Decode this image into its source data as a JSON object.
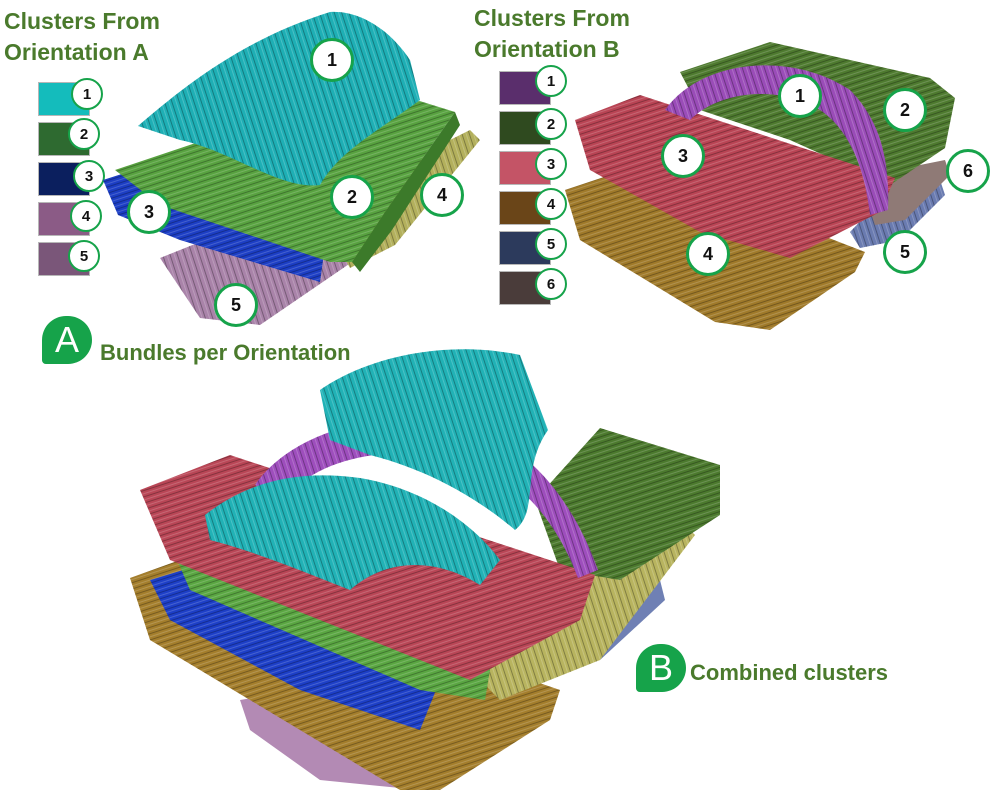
{
  "orientation_a": {
    "title_line1": "Clusters From",
    "title_line2": "Orientation A",
    "swatches": [
      {
        "label": "1",
        "color": "#14bcbc"
      },
      {
        "label": "2",
        "color": "#2e6a30"
      },
      {
        "label": "3",
        "color": "#0b1f5e"
      },
      {
        "label": "4",
        "color": "#8b5b86"
      },
      {
        "label": "5",
        "color": "#7a5679"
      }
    ],
    "callouts": [
      "1",
      "2",
      "3",
      "4",
      "5"
    ]
  },
  "orientation_b": {
    "title_line1": "Clusters From",
    "title_line2": "Orientation B",
    "swatches": [
      {
        "label": "1",
        "color": "#5a2e6c"
      },
      {
        "label": "2",
        "color": "#2f4a1f"
      },
      {
        "label": "3",
        "color": "#c45466"
      },
      {
        "label": "4",
        "color": "#6a4518"
      },
      {
        "label": "5",
        "color": "#2c3a5c"
      },
      {
        "label": "6",
        "color": "#4a3c3a"
      }
    ],
    "callouts": [
      "1",
      "2",
      "3",
      "4",
      "5",
      "6"
    ]
  },
  "section_a": {
    "marker": "A",
    "caption": "Bundles per Orientation"
  },
  "section_b": {
    "marker": "B",
    "caption": "Combined clusters"
  }
}
